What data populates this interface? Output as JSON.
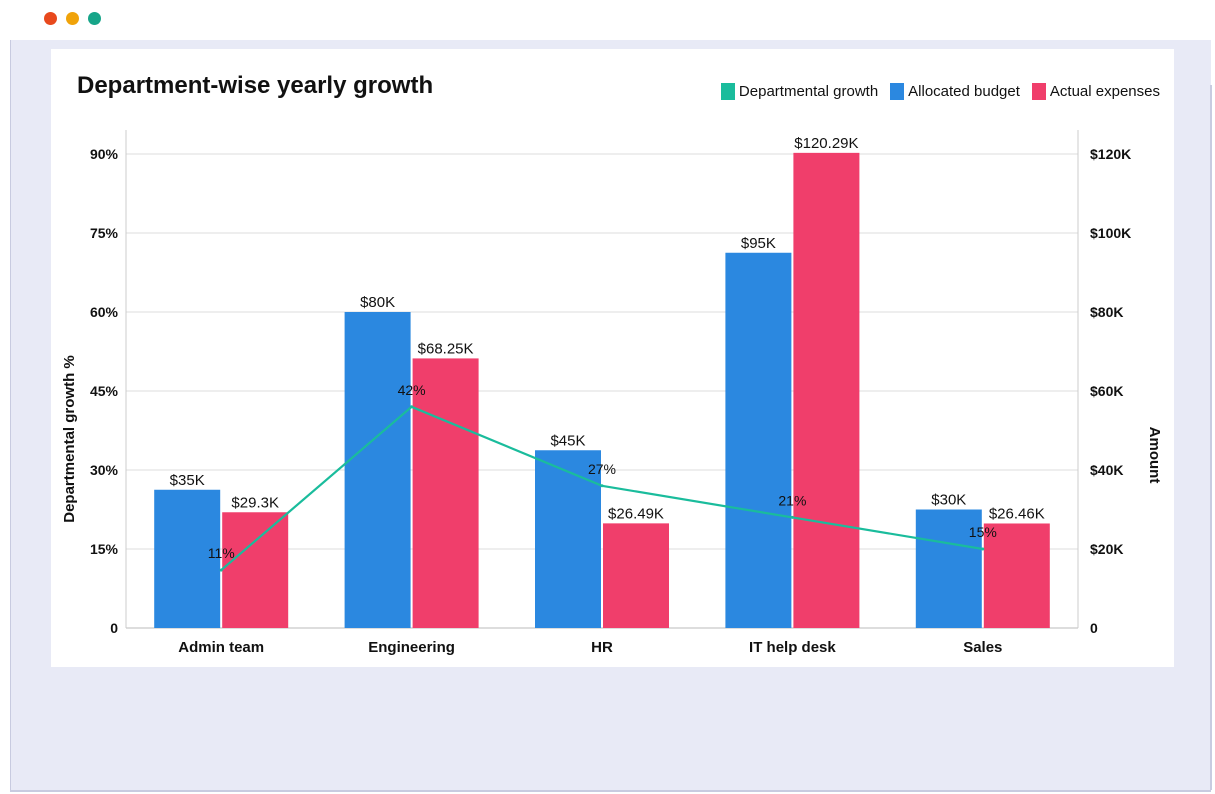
{
  "window": {
    "controls": [
      {
        "name": "close",
        "color": "#e8491d"
      },
      {
        "name": "minimize",
        "color": "#f0a30a"
      },
      {
        "name": "maximize",
        "color": "#17a589"
      }
    ]
  },
  "chart_data": {
    "type": "bar",
    "title": "Department-wise yearly growth",
    "categories": [
      "Admin team",
      "Engineering",
      "HR",
      "IT help desk",
      "Sales"
    ],
    "ylabel": "Departmental growth %",
    "y2label": "Amount",
    "ylim": [
      0,
      95
    ],
    "y2lim": [
      0,
      125000
    ],
    "y_ticks": [
      {
        "value": 0,
        "label": "0"
      },
      {
        "value": 15,
        "label": "15%"
      },
      {
        "value": 30,
        "label": "30%"
      },
      {
        "value": 45,
        "label": "45%"
      },
      {
        "value": 60,
        "label": "60%"
      },
      {
        "value": 75,
        "label": "75%"
      },
      {
        "value": 90,
        "label": "90%"
      }
    ],
    "y2_ticks": [
      {
        "value": 0,
        "label": "0"
      },
      {
        "value": 20000,
        "label": "$20K"
      },
      {
        "value": 40000,
        "label": "$40K"
      },
      {
        "value": 60000,
        "label": "$60K"
      },
      {
        "value": 80000,
        "label": "$80K"
      },
      {
        "value": 100000,
        "label": "$100K"
      },
      {
        "value": 120000,
        "label": "$120K"
      }
    ],
    "grid": true,
    "legend_position": "top-right",
    "series": [
      {
        "name": "Departmental growth",
        "kind": "line",
        "axis": "left",
        "color": "#1abc9c",
        "values": [
          11,
          42,
          27,
          21,
          15
        ],
        "labels": [
          "11%",
          "42%",
          "27%",
          "21%",
          "15%"
        ]
      },
      {
        "name": "Allocated budget",
        "kind": "bar",
        "axis": "right",
        "color": "#2b88e0",
        "values": [
          35000,
          80000,
          45000,
          95000,
          30000
        ],
        "labels": [
          "$35K",
          "$80K",
          "$45K",
          "$95K",
          "$30K"
        ]
      },
      {
        "name": "Actual expenses",
        "kind": "bar",
        "axis": "right",
        "color": "#f03e6b",
        "values": [
          29300,
          68250,
          26490,
          120290,
          26460
        ],
        "labels": [
          "$29.3K",
          "$68.25K",
          "$26.49K",
          "$120.29K",
          "$26.46K"
        ]
      }
    ]
  }
}
